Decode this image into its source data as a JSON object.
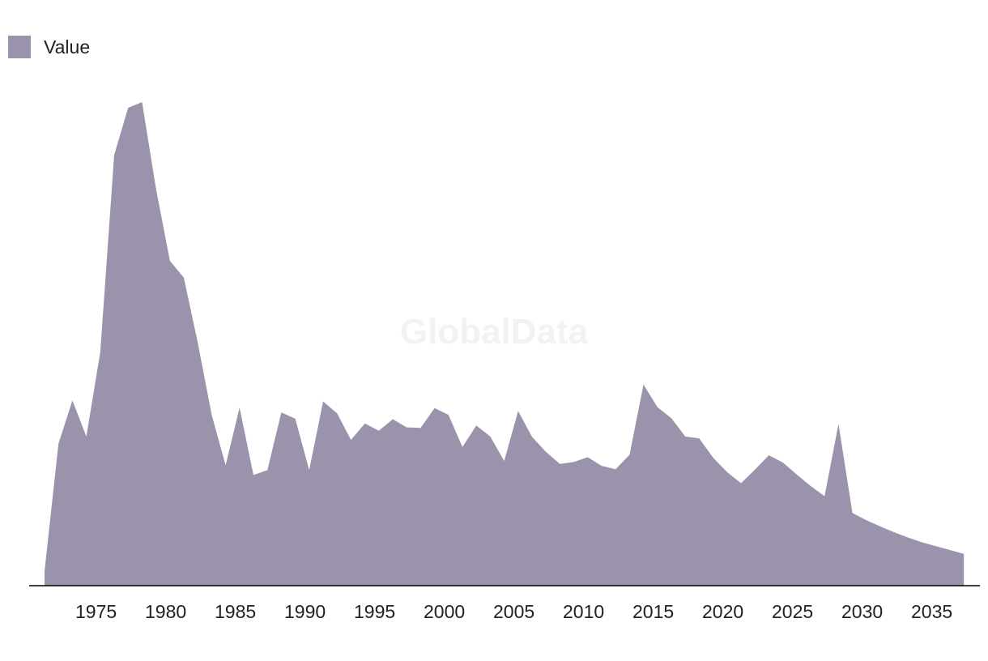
{
  "watermark": "GlobalData",
  "chart_data": {
    "type": "area",
    "title": "",
    "xlabel": "",
    "ylabel": "",
    "color": "#9b92ab",
    "axis_color": "#000000",
    "grid": false,
    "legend_position": "top-left",
    "xlim": [
      1971,
      2039
    ],
    "ylim": [
      0,
      100
    ],
    "x_ticks": [
      1975,
      1980,
      1985,
      1990,
      1995,
      2000,
      2005,
      2010,
      2015,
      2020,
      2025,
      2030,
      2035
    ],
    "series": [
      {
        "name": "Value",
        "x": [
          1972,
          1973,
          1974,
          1975,
          1976,
          1977,
          1978,
          1979,
          1980,
          1981,
          1982,
          1983,
          1984,
          1985,
          1986,
          1987,
          1988,
          1989,
          1990,
          1991,
          1992,
          1993,
          1994,
          1995,
          1996,
          1997,
          1998,
          1999,
          2000,
          2001,
          2002,
          2003,
          2004,
          2005,
          2006,
          2007,
          2008,
          2009,
          2010,
          2011,
          2012,
          2013,
          2014,
          2015,
          2016,
          2017,
          2018,
          2019,
          2020,
          2021,
          2022,
          2023,
          2024,
          2025,
          2026,
          2027,
          2028,
          2029,
          2030,
          2031,
          2032,
          2033,
          2034,
          2035,
          2036,
          2037,
          2038
        ],
        "values": [
          3,
          29.5,
          38.5,
          31,
          48.5,
          89.5,
          99.3,
          100.5,
          82.5,
          67.5,
          64,
          50.5,
          35.5,
          25,
          37,
          23,
          24,
          36,
          34.7,
          24,
          38.3,
          35.8,
          30.3,
          33.7,
          32.2,
          34.6,
          32.9,
          32.8,
          36.9,
          35.5,
          28.8,
          33.3,
          31,
          25.9,
          36.3,
          30.9,
          27.8,
          25.3,
          25.7,
          26.7,
          24.9,
          24.2,
          27.2,
          41.8,
          37.1,
          34.8,
          31,
          30.6,
          26.6,
          23.6,
          21.3,
          24.1,
          27.1,
          25.6,
          23.1,
          20.7,
          18.6,
          33.6,
          15.1,
          13.6,
          12.3,
          11.1,
          10,
          9,
          8.2,
          7.4,
          6.6
        ]
      }
    ]
  }
}
